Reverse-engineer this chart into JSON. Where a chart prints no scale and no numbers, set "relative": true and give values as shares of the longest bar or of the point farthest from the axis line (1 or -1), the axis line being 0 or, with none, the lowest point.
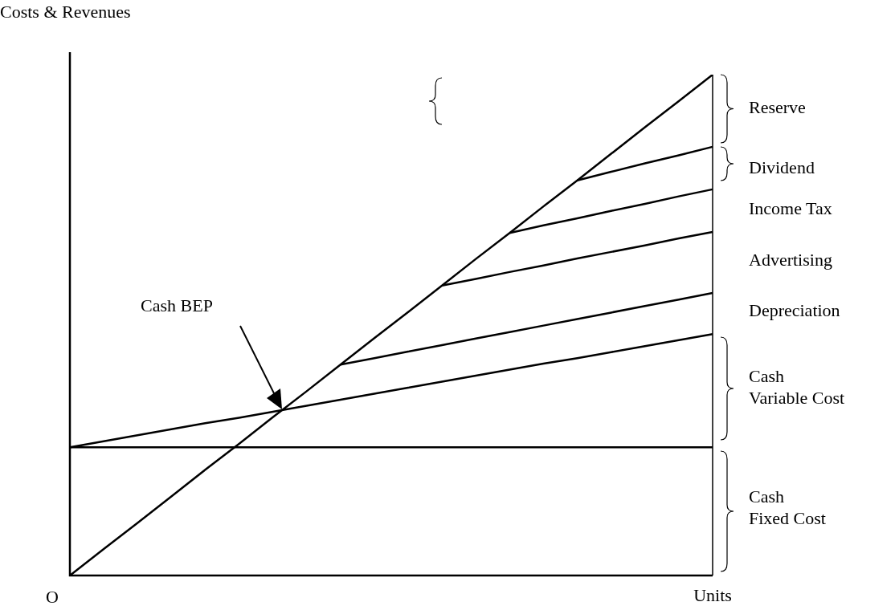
{
  "chart_data": {
    "type": "line",
    "relative": true,
    "ylabel": "Costs & Revenues",
    "xlabel": "Units",
    "marker": "none",
    "legend": false,
    "categories": [
      null,
      null,
      null,
      null,
      null,
      null,
      null,
      null,
      null,
      null,
      null,
      null,
      null,
      null,
      null,
      null,
      null,
      null,
      null,
      null
    ],
    "series": [
      {
        "color": "#000000",
        "values": [
          0,
          0.053,
          0.105,
          0.158,
          0.211,
          0.263,
          0.316,
          0.368,
          0.421,
          0.474,
          0.526,
          0.579,
          0.632,
          0.684,
          0.737,
          0.789,
          0.842,
          0.895,
          0.947,
          1
        ]
      },
      {
        "color": "#000000",
        "values": [
          0.256,
          0.256,
          0.256,
          0.256,
          0.256,
          0.256,
          0.256,
          0.256,
          0.256,
          0.256,
          0.256,
          0.256,
          0.256,
          0.256,
          0.256,
          0.256,
          0.256,
          0.256,
          0.256,
          0.256
        ]
      },
      {
        "color": "#000000",
        "values": [
          0.256,
          0.268,
          0.28,
          0.292,
          0.304,
          0.315,
          0.327,
          0.339,
          0.351,
          0.363,
          0.375,
          0.387,
          0.399,
          0.411,
          0.423,
          0.434,
          0.446,
          0.458,
          0.47,
          0.482
        ]
      },
      {
        "color": "#000000",
        "values": [
          null,
          null,
          null,
          null,
          null,
          null,
          null,
          null,
          0.421,
          0.434,
          0.447,
          0.46,
          0.473,
          0.486,
          0.499,
          0.512,
          0.525,
          0.538,
          0.551,
          0.564
        ]
      },
      {
        "color": "#000000",
        "values": [
          null,
          null,
          null,
          null,
          null,
          null,
          null,
          null,
          null,
          null,
          null,
          0.579,
          0.592,
          0.606,
          0.619,
          0.633,
          0.646,
          0.659,
          0.673,
          0.686
        ]
      },
      {
        "color": "#000000",
        "values": [
          null,
          null,
          null,
          null,
          null,
          null,
          null,
          null,
          null,
          null,
          null,
          null,
          null,
          0.684,
          0.699,
          0.713,
          0.728,
          0.742,
          0.757,
          0.771
        ]
      },
      {
        "color": "#000000",
        "values": [
          null,
          null,
          null,
          null,
          null,
          null,
          null,
          null,
          null,
          null,
          null,
          null,
          null,
          null,
          null,
          0.789,
          0.806,
          0.823,
          0.839,
          0.856
        ]
      }
    ],
    "annotations": [
      "O",
      "Cash BEP",
      "Reserve",
      "Dividend",
      "Income Tax",
      "Advertising",
      "Depreciation",
      "Cash\nVariable Cost",
      "Cash\nFixed Cost"
    ]
  }
}
